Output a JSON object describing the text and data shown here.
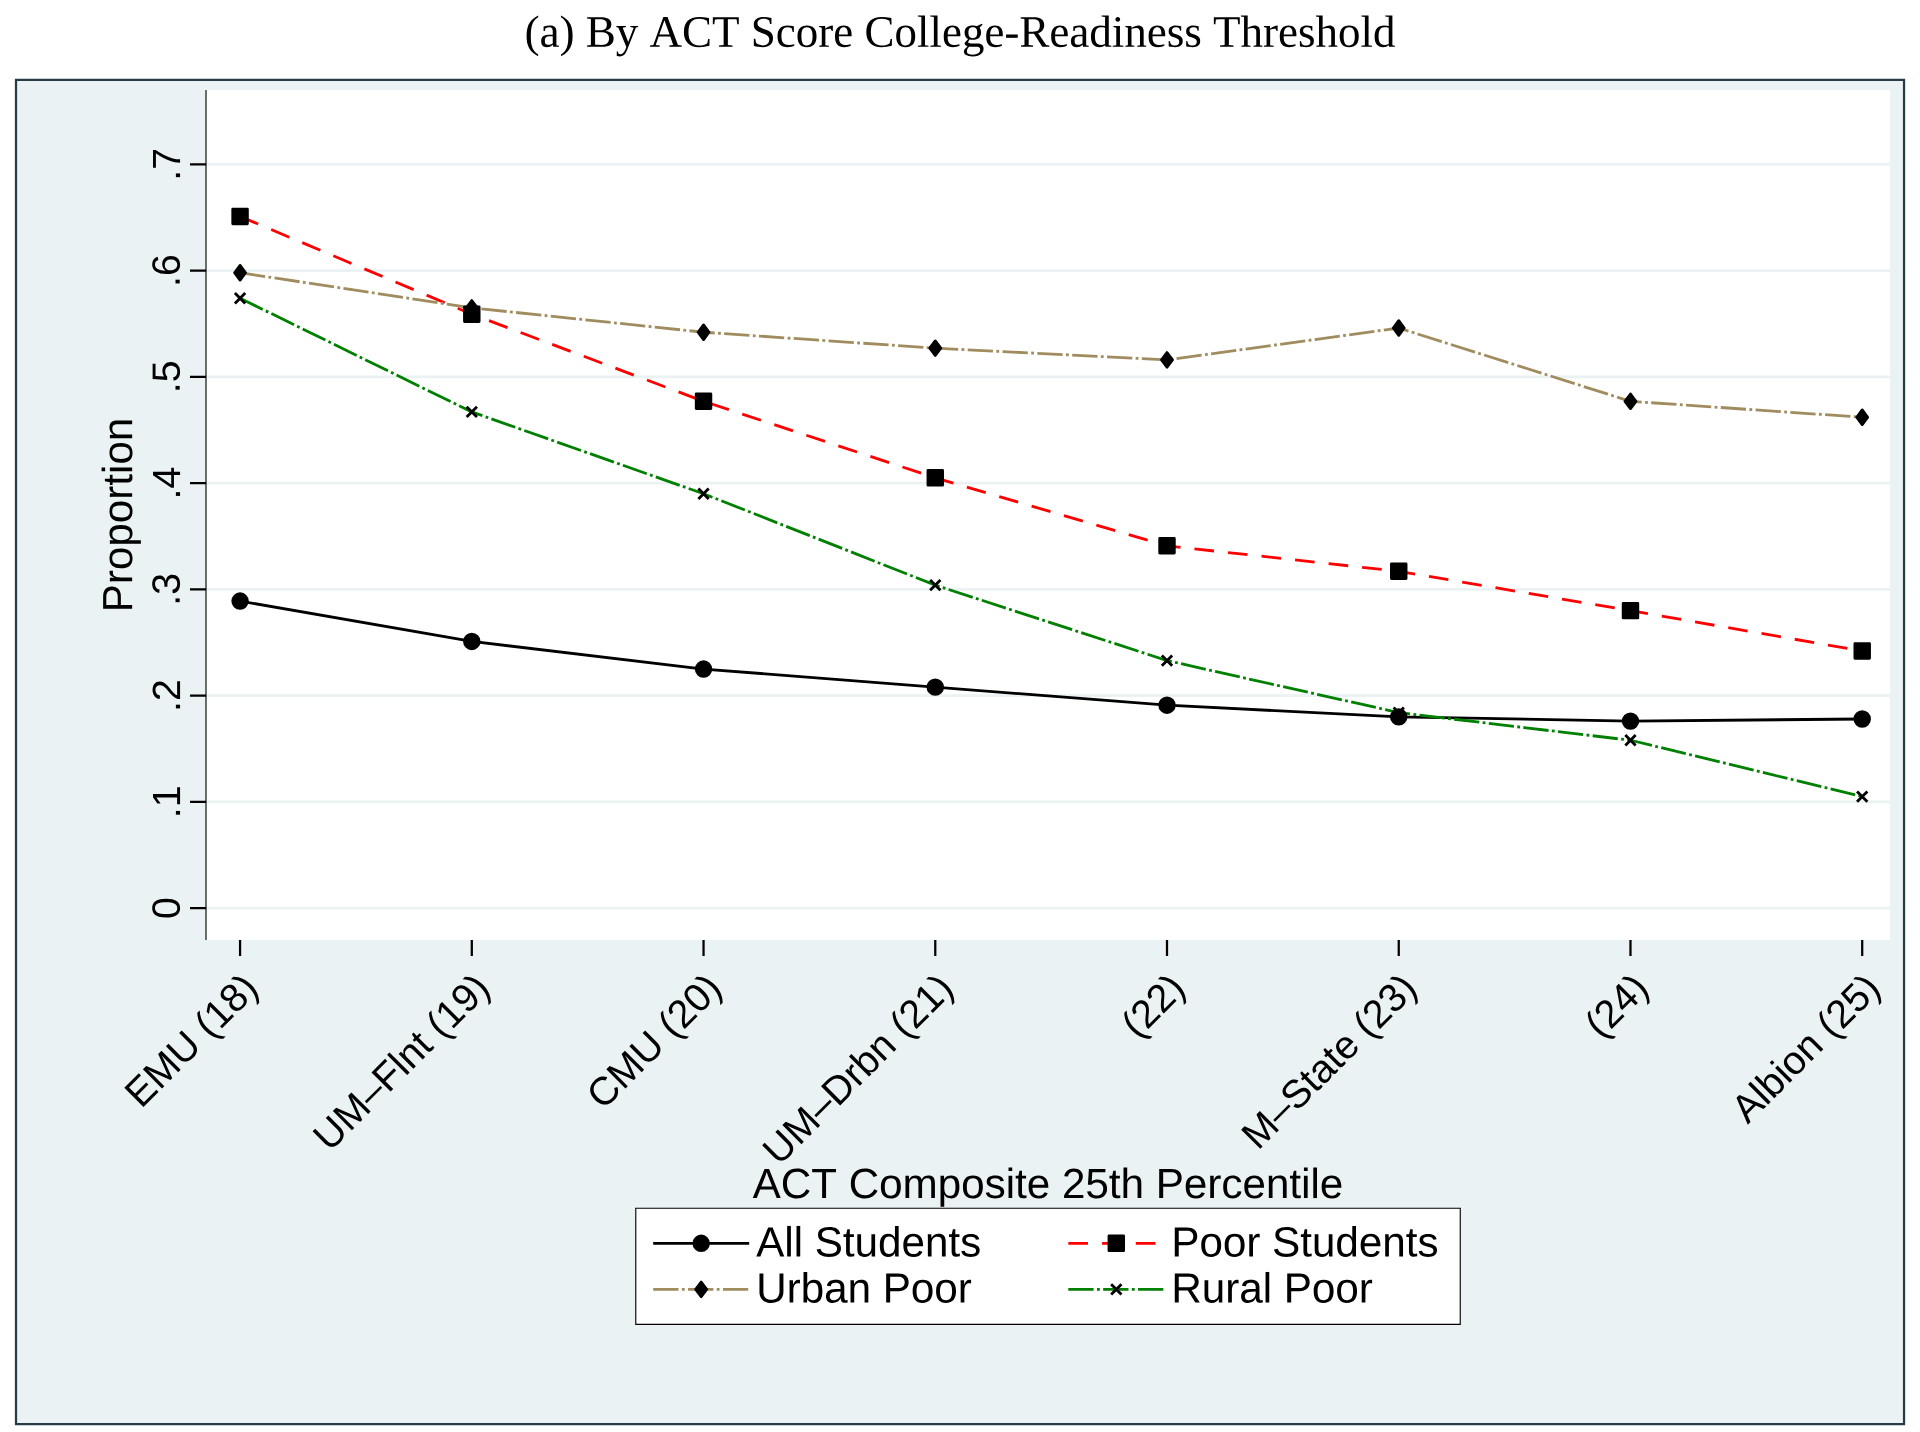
{
  "chart_data": {
    "type": "line",
    "title": "(a) By ACT Score College-Readiness Threshold",
    "xlabel": "ACT Composite 25th Percentile",
    "ylabel": "Proportion",
    "categories": [
      "EMU (18)",
      "UM–Flnt (19)",
      "CMU (20)",
      "UM–Drbn (21)",
      "(22)",
      "M–State (23)",
      "(24)",
      "Albion (25)"
    ],
    "ylim": [
      -0.03,
      0.77
    ],
    "yticks": [
      {
        "value": 0,
        "label": "0"
      },
      {
        "value": 0.1,
        "label": ".1"
      },
      {
        "value": 0.2,
        "label": ".2"
      },
      {
        "value": 0.3,
        "label": ".3"
      },
      {
        "value": 0.4,
        "label": ".4"
      },
      {
        "value": 0.5,
        "label": ".5"
      },
      {
        "value": 0.6,
        "label": ".6"
      },
      {
        "value": 0.7,
        "label": ".7"
      }
    ],
    "grid": "y",
    "legend": "bottom",
    "series": [
      {
        "name": "All Students",
        "color": "#000000",
        "marker": "circle",
        "line_style": "solid",
        "values": [
          0.289,
          0.251,
          0.225,
          0.208,
          0.191,
          0.18,
          0.176,
          0.178
        ]
      },
      {
        "name": "Poor Students",
        "color": "#ff0000",
        "marker": "square",
        "line_style": "dashed",
        "values": [
          0.651,
          0.559,
          0.477,
          0.405,
          0.341,
          0.317,
          0.28,
          0.242
        ]
      },
      {
        "name": "Urban Poor",
        "color": "#a08c5e",
        "marker": "diamond",
        "line_style": "dashdot",
        "values": [
          0.598,
          0.565,
          0.542,
          0.527,
          0.516,
          0.546,
          0.477,
          0.462
        ]
      },
      {
        "name": "Rural Poor",
        "color": "#008000",
        "marker": "cross",
        "line_style": "dashdot",
        "values": [
          0.574,
          0.467,
          0.39,
          0.304,
          0.233,
          0.184,
          0.158,
          0.105
        ]
      }
    ]
  }
}
